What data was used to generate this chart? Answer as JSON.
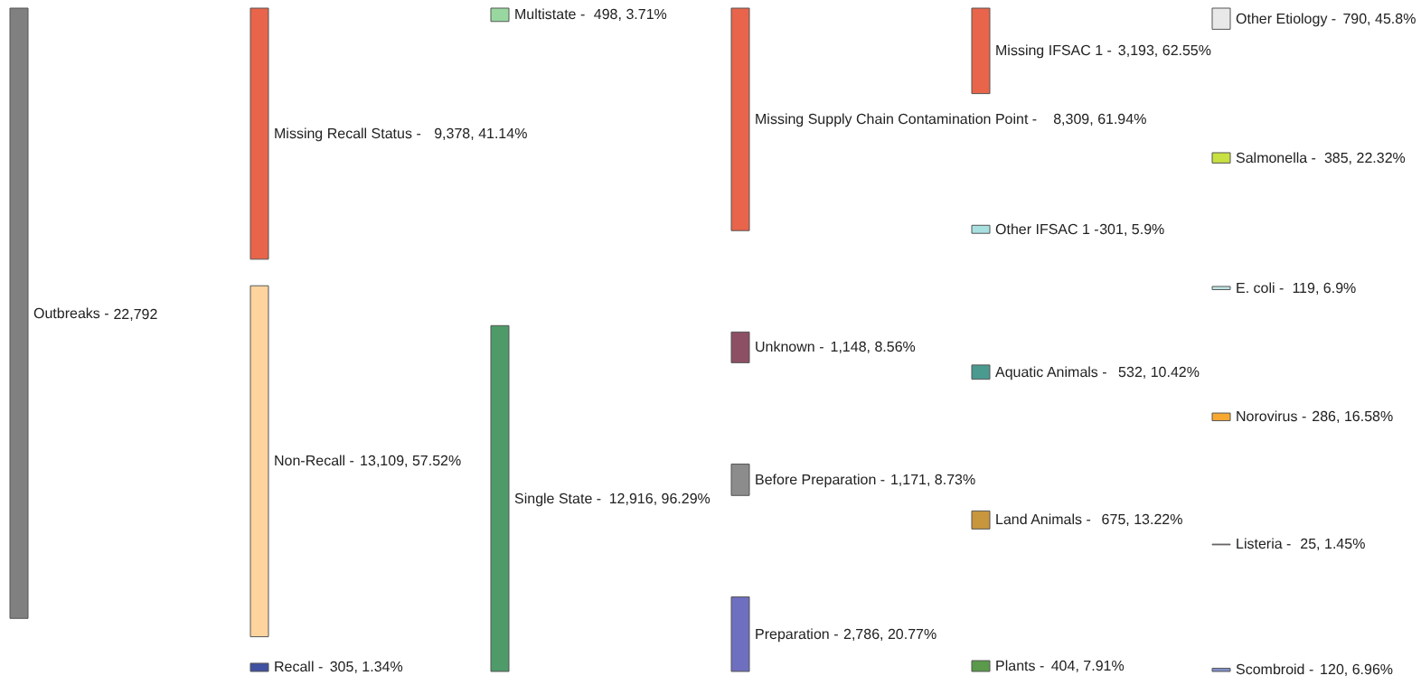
{
  "chart_data": {
    "type": "other",
    "categories": [
      "Outbreaks -",
      "Missing Recall Status -",
      "Non-Recall -",
      "Recall -",
      "Multistate -",
      "Single State -",
      "Missing Supply Chain Contamination Point -",
      "Unknown -",
      "Before Preparation -",
      "Preparation -",
      "Missing IFSAC 1 -",
      "Other IFSAC 1 -",
      "Aquatic Animals -",
      "Land Animals -",
      "Plants -",
      "Other Etiology -",
      "Salmonella -",
      "E. coli -",
      "Norovirus -",
      "Listeria -",
      "Scombroid -"
    ],
    "series": [
      {
        "values": [
          22792,
          null,
          null,
          null,
          null,
          null,
          null,
          null,
          null,
          null,
          null,
          null,
          null,
          null,
          null,
          null,
          null,
          null,
          null,
          null,
          null
        ],
        "value_labels": [
          "22,792",
          null,
          null,
          null,
          null,
          null,
          null,
          null,
          null,
          null,
          null,
          null,
          null,
          null,
          null,
          null,
          null,
          null,
          null,
          null,
          null
        ]
      },
      {
        "values": [
          null,
          9378,
          13109,
          305,
          null,
          null,
          null,
          null,
          null,
          null,
          null,
          null,
          null,
          null,
          null,
          null,
          null,
          null,
          null,
          null,
          null
        ],
        "value_labels": [
          null,
          "9,378, 41.14%",
          "13,109, 57.52%",
          "305, 1.34%",
          null,
          null,
          null,
          null,
          null,
          null,
          null,
          null,
          null,
          null,
          null,
          null,
          null,
          null,
          null,
          null,
          null
        ]
      },
      {
        "values": [
          null,
          null,
          null,
          null,
          498,
          12916,
          null,
          null,
          null,
          null,
          null,
          null,
          null,
          null,
          null,
          null,
          null,
          null,
          null,
          null,
          null
        ],
        "value_labels": [
          null,
          null,
          null,
          null,
          "498, 3.71%",
          "12,916, 96.29%",
          null,
          null,
          null,
          null,
          null,
          null,
          null,
          null,
          null,
          null,
          null,
          null,
          null,
          null,
          null
        ]
      },
      {
        "values": [
          null,
          null,
          null,
          null,
          null,
          null,
          8309,
          1148,
          1171,
          2786,
          null,
          null,
          null,
          null,
          null,
          null,
          null,
          null,
          null,
          null,
          null
        ],
        "value_labels": [
          null,
          null,
          null,
          null,
          null,
          null,
          "8,309, 61.94%",
          "1,148, 8.56%",
          "1,171, 8.73%",
          "2,786, 20.77%",
          null,
          null,
          null,
          null,
          null,
          null,
          null,
          null,
          null,
          null,
          null
        ]
      },
      {
        "values": [
          null,
          null,
          null,
          null,
          null,
          null,
          null,
          null,
          null,
          null,
          3193,
          301,
          532,
          675,
          404,
          null,
          null,
          null,
          null,
          null,
          null
        ],
        "value_labels": [
          null,
          null,
          null,
          null,
          null,
          null,
          null,
          null,
          null,
          null,
          "3,193, 62.55%",
          "301, 5.9%",
          "532, 10.42%",
          "675, 13.22%",
          "404, 7.91%",
          null,
          null,
          null,
          null,
          null,
          null
        ]
      },
      {
        "values": [
          null,
          null,
          null,
          null,
          null,
          null,
          null,
          null,
          null,
          null,
          null,
          null,
          null,
          null,
          null,
          790,
          385,
          119,
          286,
          25,
          120
        ],
        "value_labels": [
          null,
          null,
          null,
          null,
          null,
          null,
          null,
          null,
          null,
          null,
          null,
          null,
          null,
          null,
          null,
          "790, 45.8%",
          "385, 22.32%",
          "119, 6.9%",
          "286, 16.58%",
          "25, 1.45%",
          "120, 6.96%"
        ]
      }
    ],
    "colors": [
      "#808080",
      "#e8644a",
      "#fdd49e",
      "#3f51a0",
      "#98d8a0",
      "#4e9a68",
      "#e8644a",
      "#8c4f64",
      "#8c8c8c",
      "#6e6fbf",
      "#e8644a",
      "#a8e0e0",
      "#4a9a90",
      "#c8963c",
      "#5a9a4a",
      "#e8e8e8",
      "#c8e040",
      "#c0e4e4",
      "#f8a830",
      "#d8a8d8",
      "#8090c8"
    ]
  }
}
